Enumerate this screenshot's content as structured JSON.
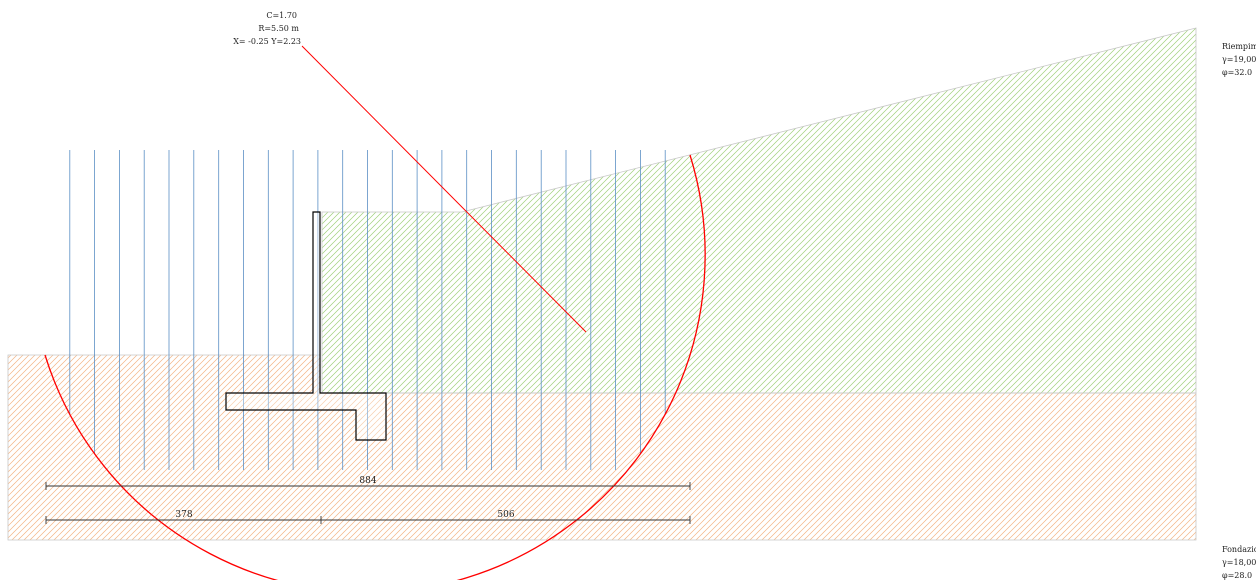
{
  "analysis": {
    "line1": "C=1.70",
    "line2": "R=5.50 m",
    "line3": "X= -0.25  Y=2.23"
  },
  "soil_upper": {
    "name": "Riempim",
    "gamma": "γ=19,00",
    "phi": "φ=32.0"
  },
  "soil_lower": {
    "name": "Fondazio",
    "gamma": "γ=18,00",
    "phi": "φ=28.0"
  },
  "dimensions": {
    "total": "884",
    "left": "378",
    "right": "506"
  },
  "colors": {
    "upper_hatch": "#9fd07a",
    "lower_hatch": "#f2b483",
    "slice": "#5b8fc4",
    "slip": "#ff0000",
    "outline": "#000000",
    "dim": "#333333",
    "boundary": "#c8c8c8"
  },
  "slice_count": 26
}
